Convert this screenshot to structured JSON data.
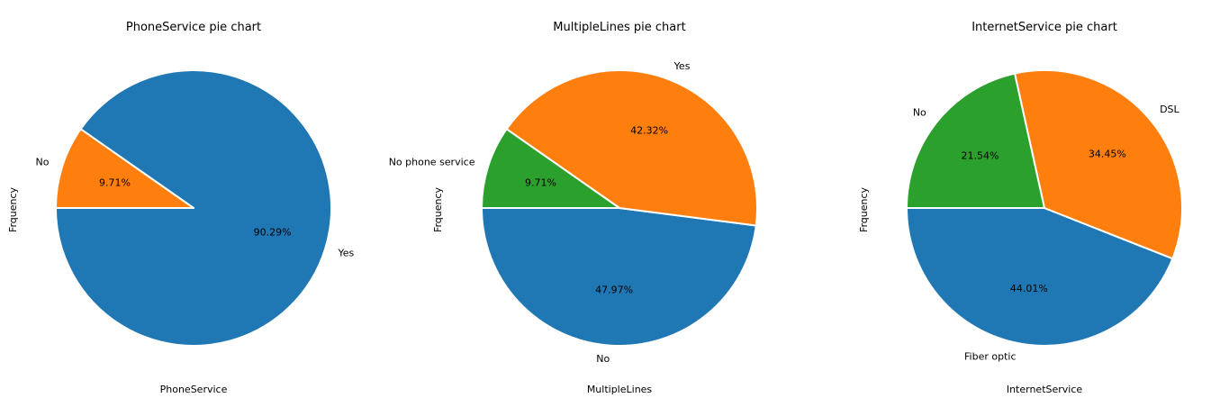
{
  "colors": {
    "blue": "#1f77b4",
    "orange": "#ff7f0e",
    "green": "#2ca02c",
    "edge": "#ffffff"
  },
  "chart_data": [
    {
      "type": "pie",
      "title": "PhoneService pie chart",
      "xlabel": "PhoneService",
      "ylabel": "Frquency",
      "slices": [
        {
          "label": "Yes",
          "value": 90.29,
          "pct_label": "90.29%",
          "color": "#1f77b4"
        },
        {
          "label": "No",
          "value": 9.71,
          "pct_label": "9.71%",
          "color": "#ff7f0e"
        }
      ]
    },
    {
      "type": "pie",
      "title": "MultipleLines pie chart",
      "xlabel": "MultipleLines",
      "ylabel": "Frquency",
      "slices": [
        {
          "label": "No",
          "value": 47.97,
          "pct_label": "47.97%",
          "color": "#1f77b4"
        },
        {
          "label": "Yes",
          "value": 42.32,
          "pct_label": "42.32%",
          "color": "#ff7f0e"
        },
        {
          "label": "No phone service",
          "value": 9.71,
          "pct_label": "9.71%",
          "color": "#2ca02c"
        }
      ]
    },
    {
      "type": "pie",
      "title": "InternetService pie chart",
      "xlabel": "InternetService",
      "ylabel": "Frquency",
      "slices": [
        {
          "label": "Fiber optic",
          "value": 44.01,
          "pct_label": "44.01%",
          "color": "#1f77b4"
        },
        {
          "label": "DSL",
          "value": 34.45,
          "pct_label": "34.45%",
          "color": "#ff7f0e"
        },
        {
          "label": "No",
          "value": 21.54,
          "pct_label": "21.54%",
          "color": "#2ca02c"
        }
      ]
    }
  ]
}
